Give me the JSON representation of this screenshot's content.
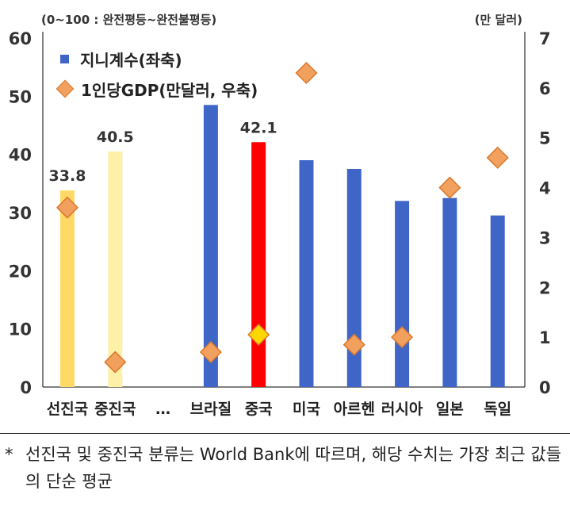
{
  "units": {
    "left": "(0~100 : 완전평등~완전불평등)",
    "right": "(만 달러)"
  },
  "legend": {
    "gini": "지니계수(좌축)",
    "gdp": "1인당GDP(만달러, 우축)"
  },
  "colors": {
    "bar_default": "#3f66c7",
    "bar_china": "#ff0000",
    "bar_advanced": "#ffd966",
    "bar_developing": "#fff0a8",
    "diamond": "#f2a05e",
    "diamond_china": "#ffd700",
    "axis": "#000000"
  },
  "chart_data": {
    "type": "bar",
    "categories": [
      "선진국",
      "중진국",
      "…",
      "브라질",
      "중국",
      "미국",
      "아르헨",
      "러시아",
      "일본",
      "독일"
    ],
    "series": [
      {
        "name": "지니계수(좌축)",
        "axis": "left",
        "type": "bar",
        "values": [
          33.8,
          40.5,
          null,
          48.5,
          42.1,
          39.0,
          37.5,
          32.0,
          32.5,
          29.5
        ]
      },
      {
        "name": "1인당GDP(만달러, 우축)",
        "axis": "right",
        "type": "scatter",
        "values": [
          3.6,
          0.5,
          null,
          0.7,
          1.05,
          6.3,
          0.85,
          1.0,
          4.0,
          4.6
        ]
      }
    ],
    "data_labels": {
      "0": "33.8",
      "1": "40.5",
      "4": "42.1"
    },
    "y_left": {
      "ylim": [
        0,
        60
      ],
      "ticks": [
        0,
        10,
        20,
        30,
        40,
        50,
        60
      ]
    },
    "y_right": {
      "ylim": [
        0,
        7
      ],
      "ticks": [
        0,
        1,
        2,
        3,
        4,
        5,
        6,
        7
      ]
    },
    "legend_position": "top-left",
    "grid": false
  },
  "footnote": {
    "marker": "*",
    "text": "선진국 및 중진국 분류는 World Bank에 따르며, 해당 수치는 가장 최근 값들의 단순 평균"
  }
}
